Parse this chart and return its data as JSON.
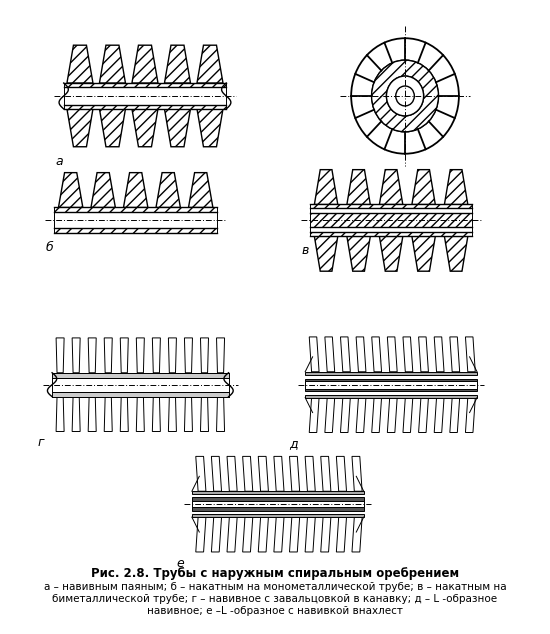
{
  "title_bold": "Рис. 2.8. Трубы с наружным спиральным оребрением",
  "caption_line1": "а – навивным паяным; б – накатным на монометаллической трубе; в – накатным на",
  "caption_line2": "биметаллической трубе; г – навивное с завальцовкой в канавку; д – L -образное",
  "caption_line3": "навивное; е –L -образное с навивкой внахлест",
  "label_a": "а",
  "label_b": "б",
  "label_v": "в",
  "label_g": "г",
  "label_d": "д",
  "label_e": "е",
  "bg_color": "#ffffff",
  "line_color": "#000000",
  "gray_fill": "#aaaaaa",
  "dark_fill": "#555555",
  "light_gray": "#dddddd"
}
